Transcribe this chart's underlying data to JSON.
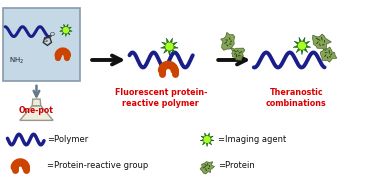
{
  "bg_color": "#ffffff",
  "arrow_color": "#111111",
  "polymer_color": "#1a1e8a",
  "green_star_color": "#228b00",
  "orange_hook_color": "#cc4400",
  "red_text_color": "#dd0000",
  "flask_body_color": "#f0ede0",
  "flask_label_color": "#cc0000",
  "box_color": "#c5d8e5",
  "label1": "Fluorescent protein-\nreactive polymer",
  "label2": "Theranostic\ncombinations",
  "legend_polymer": "=Polymer",
  "legend_reactive": "=Protein-reactive group",
  "legend_imaging": "=Imaging agent",
  "legend_protein": "=Protein",
  "one_pot": "One-pot"
}
